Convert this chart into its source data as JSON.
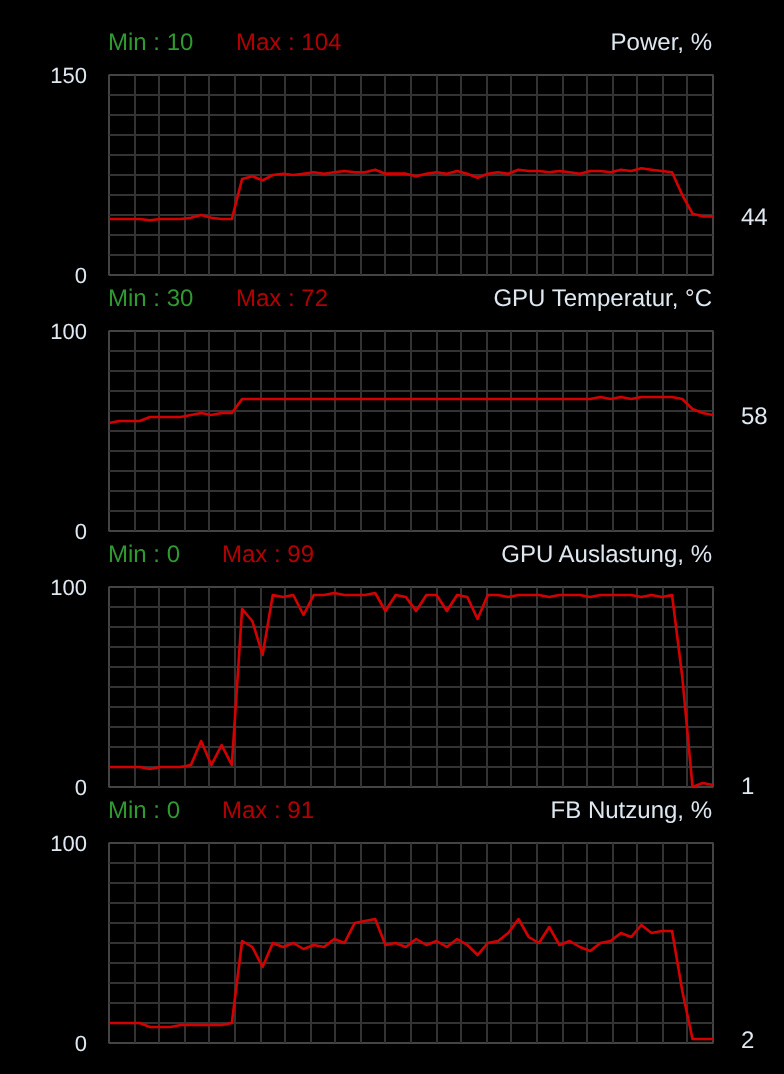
{
  "chart_data": [
    {
      "type": "line",
      "title": "Power, %",
      "categories": [
        null,
        null,
        null,
        null,
        null,
        null,
        null,
        null,
        null,
        null,
        null,
        null,
        null,
        null,
        null,
        null,
        null,
        null,
        null,
        null,
        null,
        null,
        null,
        null,
        null,
        null,
        null,
        null,
        null,
        null,
        null,
        null,
        null,
        null,
        null,
        null,
        null,
        null,
        null,
        null,
        null,
        null,
        null,
        null,
        null,
        null,
        null,
        null,
        null,
        null,
        null,
        null,
        null,
        null,
        null,
        null,
        null,
        null,
        null,
        null
      ],
      "series": [
        {
          "color": "#d40000",
          "values": [
            42,
            42,
            42,
            42,
            41,
            42,
            42,
            42,
            43,
            45,
            43,
            42,
            42,
            72,
            74,
            71,
            75,
            76,
            75,
            76,
            77,
            76,
            77,
            78,
            77,
            77,
            79,
            76,
            76,
            76,
            74,
            76,
            77,
            76,
            78,
            76,
            73,
            76,
            77,
            76,
            79,
            78,
            78,
            77,
            78,
            77,
            76,
            78,
            78,
            77,
            79,
            78,
            80,
            79,
            78,
            77,
            60,
            46,
            44,
            44
          ]
        }
      ],
      "ylim": [
        0,
        150
      ],
      "yticks": [
        0,
        {
          "value": 15,
          "label": null
        },
        {
          "value": 30,
          "label": null
        },
        {
          "value": 45,
          "label": null
        },
        {
          "value": 60,
          "label": null
        },
        {
          "value": 75,
          "label": null
        },
        {
          "value": 90,
          "label": null
        },
        {
          "value": 105,
          "label": null
        },
        {
          "value": 120,
          "label": null
        },
        {
          "value": 135,
          "label": null
        },
        150
      ],
      "grid": true,
      "tick_labels": "y",
      "annotations": [
        "Min : 10",
        "Max : 104",
        "44"
      ]
    },
    {
      "type": "line",
      "title": "GPU Temperatur, °C",
      "categories": [
        null,
        null,
        null,
        null,
        null,
        null,
        null,
        null,
        null,
        null,
        null,
        null,
        null,
        null,
        null,
        null,
        null,
        null,
        null,
        null,
        null,
        null,
        null,
        null,
        null,
        null,
        null,
        null,
        null,
        null,
        null,
        null,
        null,
        null,
        null,
        null,
        null,
        null,
        null,
        null,
        null,
        null,
        null,
        null,
        null,
        null,
        null,
        null,
        null,
        null,
        null,
        null,
        null,
        null,
        null,
        null,
        null,
        null,
        null,
        null
      ],
      "series": [
        {
          "color": "#d40000",
          "values": [
            54,
            55,
            55,
            55,
            57,
            57,
            57,
            57,
            58,
            59,
            58,
            59,
            59,
            66,
            66,
            66,
            66,
            66,
            66,
            66,
            66,
            66,
            66,
            66,
            66,
            66,
            66,
            66,
            66,
            66,
            66,
            66,
            66,
            66,
            66,
            66,
            66,
            66,
            66,
            66,
            66,
            66,
            66,
            66,
            66,
            66,
            66,
            66,
            67,
            66,
            67,
            66,
            67,
            67,
            67,
            67,
            66,
            61,
            59,
            58
          ]
        }
      ],
      "ylim": [
        0,
        100
      ],
      "yticks": [
        0,
        {
          "value": 10,
          "label": null
        },
        {
          "value": 20,
          "label": null
        },
        {
          "value": 30,
          "label": null
        },
        {
          "value": 40,
          "label": null
        },
        {
          "value": 50,
          "label": null
        },
        {
          "value": 60,
          "label": null
        },
        {
          "value": 70,
          "label": null
        },
        {
          "value": 80,
          "label": null
        },
        {
          "value": 90,
          "label": null
        },
        100
      ],
      "grid": true,
      "tick_labels": "y",
      "annotations": [
        "Min : 30",
        "Max : 72",
        "58"
      ]
    },
    {
      "type": "line",
      "title": "GPU Auslastung, %",
      "categories": [
        null,
        null,
        null,
        null,
        null,
        null,
        null,
        null,
        null,
        null,
        null,
        null,
        null,
        null,
        null,
        null,
        null,
        null,
        null,
        null,
        null,
        null,
        null,
        null,
        null,
        null,
        null,
        null,
        null,
        null,
        null,
        null,
        null,
        null,
        null,
        null,
        null,
        null,
        null,
        null,
        null,
        null,
        null,
        null,
        null,
        null,
        null,
        null,
        null,
        null,
        null,
        null,
        null,
        null,
        null,
        null,
        null,
        null,
        null,
        null
      ],
      "series": [
        {
          "color": "#d40000",
          "values": [
            10,
            10,
            10,
            10,
            9,
            10,
            10,
            10,
            11,
            23,
            11,
            21,
            11,
            89,
            83,
            66,
            96,
            95,
            96,
            86,
            96,
            96,
            97,
            96,
            96,
            96,
            97,
            88,
            96,
            95,
            88,
            96,
            96,
            88,
            96,
            95,
            84,
            96,
            96,
            95,
            96,
            96,
            96,
            95,
            96,
            96,
            96,
            95,
            96,
            96,
            96,
            96,
            95,
            96,
            95,
            96,
            55,
            0,
            2,
            1
          ]
        }
      ],
      "ylim": [
        0,
        100
      ],
      "yticks": [
        0,
        {
          "value": 10,
          "label": null
        },
        {
          "value": 20,
          "label": null
        },
        {
          "value": 30,
          "label": null
        },
        {
          "value": 40,
          "label": null
        },
        {
          "value": 50,
          "label": null
        },
        {
          "value": 60,
          "label": null
        },
        {
          "value": 70,
          "label": null
        },
        {
          "value": 80,
          "label": null
        },
        {
          "value": 90,
          "label": null
        },
        100
      ],
      "grid": true,
      "tick_labels": "y",
      "annotations": [
        "Min : 0",
        "Max : 99",
        "1"
      ]
    },
    {
      "type": "line",
      "title": "FB Nutzung, %",
      "categories": [
        null,
        null,
        null,
        null,
        null,
        null,
        null,
        null,
        null,
        null,
        null,
        null,
        null,
        null,
        null,
        null,
        null,
        null,
        null,
        null,
        null,
        null,
        null,
        null,
        null,
        null,
        null,
        null,
        null,
        null,
        null,
        null,
        null,
        null,
        null,
        null,
        null,
        null,
        null,
        null,
        null,
        null,
        null,
        null,
        null,
        null,
        null,
        null,
        null,
        null,
        null,
        null,
        null,
        null,
        null,
        null,
        null,
        null,
        null,
        null
      ],
      "series": [
        {
          "color": "#d40000",
          "values": [
            10,
            10,
            10,
            10,
            8,
            8,
            8,
            9,
            9,
            9,
            9,
            9,
            10,
            51,
            48,
            38,
            50,
            48,
            50,
            47,
            49,
            48,
            52,
            50,
            60,
            61,
            62,
            49,
            50,
            48,
            52,
            49,
            51,
            48,
            52,
            49,
            44,
            50,
            51,
            55,
            62,
            53,
            50,
            58,
            49,
            51,
            48,
            46,
            50,
            51,
            55,
            53,
            59,
            55,
            56,
            56,
            26,
            2,
            2,
            2
          ]
        }
      ],
      "ylim": [
        0,
        100
      ],
      "yticks": [
        0,
        {
          "value": 10,
          "label": null
        },
        {
          "value": 20,
          "label": null
        },
        {
          "value": 30,
          "label": null
        },
        {
          "value": 40,
          "label": null
        },
        {
          "value": 50,
          "label": null
        },
        {
          "value": 60,
          "label": null
        },
        {
          "value": 70,
          "label": null
        },
        {
          "value": 80,
          "label": null
        },
        {
          "value": 90,
          "label": null
        },
        100
      ],
      "grid": true,
      "tick_labels": "y",
      "annotations": [
        "Min : 0",
        "Max : 91",
        "2"
      ]
    }
  ]
}
